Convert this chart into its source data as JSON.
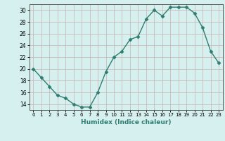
{
  "x": [
    0,
    1,
    2,
    3,
    4,
    5,
    6,
    7,
    8,
    9,
    10,
    11,
    12,
    13,
    14,
    15,
    16,
    17,
    18,
    19,
    20,
    21,
    22,
    23
  ],
  "y": [
    20,
    18.5,
    17,
    15.5,
    15,
    14,
    13.5,
    13.5,
    16,
    19.5,
    22,
    23,
    25,
    25.5,
    28.5,
    30,
    29,
    30.5,
    30.5,
    30.5,
    29.5,
    27,
    23,
    21
  ],
  "line_color": "#2e7d6e",
  "marker": "D",
  "marker_size": 2.5,
  "bg_color": "#d6f0f0",
  "grid_color": "#c8b0b0",
  "xlabel": "Humidex (Indice chaleur)",
  "ylim": [
    13,
    31
  ],
  "yticks": [
    14,
    16,
    18,
    20,
    22,
    24,
    26,
    28,
    30
  ],
  "xticks": [
    0,
    1,
    2,
    3,
    4,
    5,
    6,
    7,
    8,
    9,
    10,
    11,
    12,
    13,
    14,
    15,
    16,
    17,
    18,
    19,
    20,
    21,
    22,
    23
  ],
  "xlim": [
    -0.5,
    23.5
  ]
}
